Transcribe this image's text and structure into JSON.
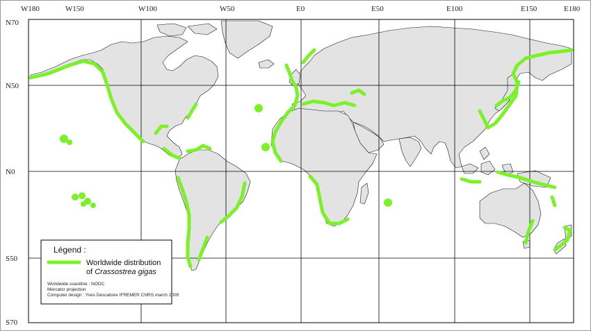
{
  "map": {
    "lon_labels": [
      "W180",
      "W150",
      "W100",
      "W50",
      "E0",
      "E50",
      "E100",
      "E150",
      "E180"
    ],
    "lat_labels": [
      "N70",
      "N50",
      "N0",
      "S50",
      "S70"
    ],
    "colors": {
      "land": "#e3e3e3",
      "coast": "#1a1a1a",
      "distribution": "#7cf12a",
      "grid": "#000000",
      "ocean": "#ffffff"
    }
  },
  "legend": {
    "title": "Légend :",
    "entry_line1": "Worldwide distribution",
    "entry_line2_prefix": "of ",
    "entry_line2_species": "Crassostrea gigas",
    "credit1": "Worldwide coastline : NODC",
    "credit2": "Mercator projection",
    "credit3": "Computer design : Yves Descatoire IFREMER CNRS march 2009"
  }
}
